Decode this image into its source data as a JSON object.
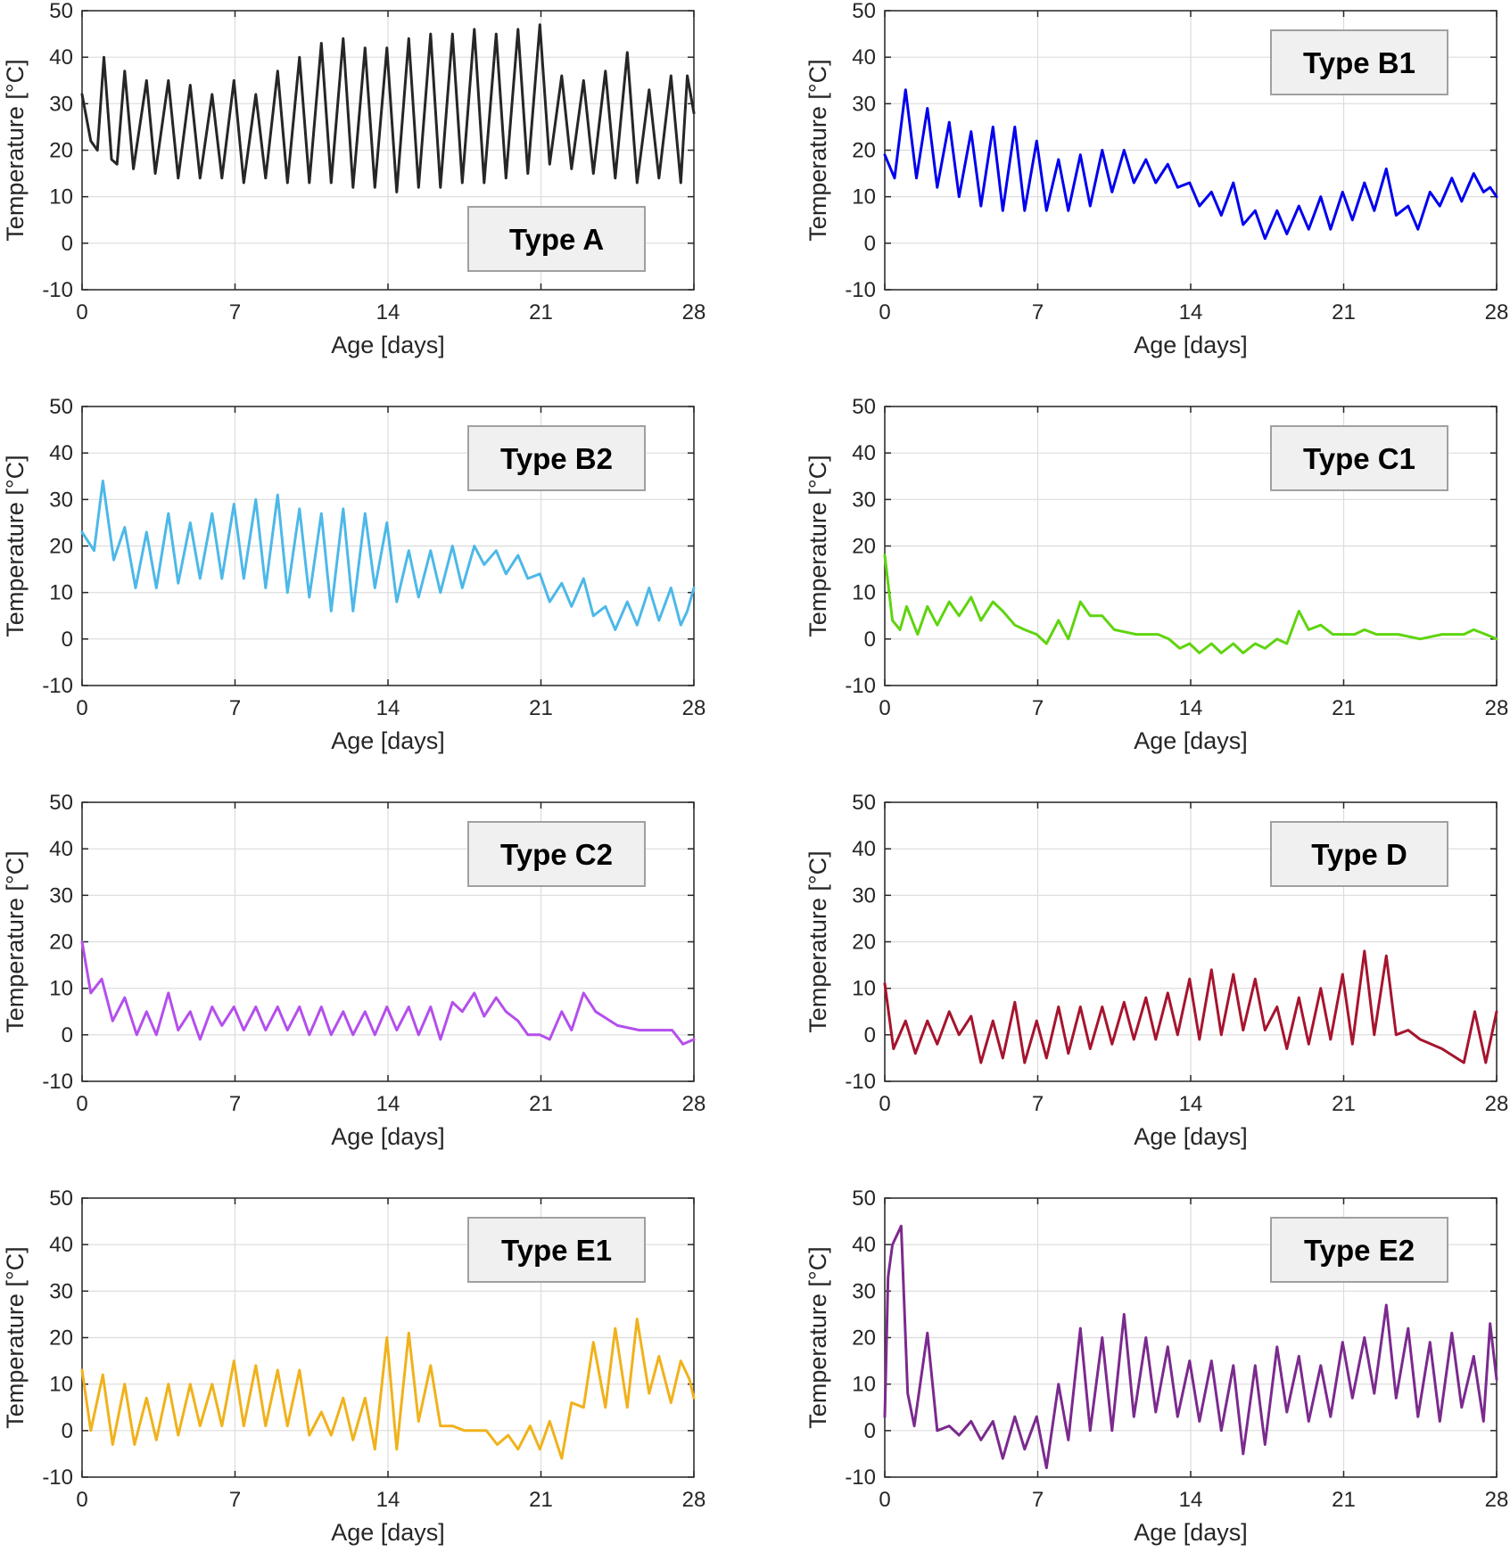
{
  "chart_data": [
    {
      "type": "line",
      "title": "",
      "legend": "Type A",
      "legend_position": "bottom-right",
      "color": "#262626",
      "xlabel": "Age [days]",
      "ylabel": "Temperature [°C]",
      "xlim": [
        0,
        28
      ],
      "ylim": [
        -10,
        50
      ],
      "xticks": [
        0,
        7,
        14,
        21,
        28
      ],
      "yticks": [
        -10,
        0,
        10,
        20,
        30,
        40,
        50
      ],
      "grid": true,
      "x": [
        0,
        0.4,
        0.7,
        1.0,
        1.35,
        1.6,
        1.95,
        2.35,
        2.95,
        3.35,
        3.95,
        4.4,
        4.95,
        5.4,
        5.95,
        6.4,
        6.95,
        7.4,
        7.95,
        8.4,
        8.95,
        9.4,
        9.95,
        10.4,
        10.95,
        11.4,
        11.95,
        12.4,
        12.95,
        13.4,
        13.95,
        14.4,
        14.95,
        15.4,
        15.95,
        16.4,
        16.95,
        17.4,
        17.95,
        18.4,
        18.95,
        19.4,
        19.95,
        20.4,
        20.95,
        21.4,
        21.95,
        22.4,
        22.95,
        23.4,
        23.95,
        24.4,
        24.95,
        25.4,
        25.95,
        26.4,
        26.95,
        27.4,
        27.7,
        28
      ],
      "y": [
        32,
        22,
        20,
        40,
        18,
        17,
        37,
        16,
        35,
        15,
        35,
        14,
        34,
        14,
        32,
        14,
        35,
        13,
        32,
        14,
        37,
        13,
        40,
        13,
        43,
        13,
        44,
        12,
        42,
        12,
        42,
        11,
        44,
        12,
        45,
        12,
        45,
        13,
        46,
        13,
        45,
        14,
        46,
        15,
        47,
        17,
        36,
        16,
        35,
        15,
        37,
        14,
        41,
        13,
        33,
        14,
        36,
        13,
        36,
        28
      ]
    },
    {
      "type": "line",
      "title": "",
      "legend": "Type B1",
      "legend_position": "top-right",
      "color": "#0000ee",
      "xlabel": "Age [days]",
      "ylabel": "Temperature [°C]",
      "xlim": [
        0,
        28
      ],
      "ylim": [
        -10,
        50
      ],
      "xticks": [
        0,
        7,
        14,
        21,
        28
      ],
      "yticks": [
        -10,
        0,
        10,
        20,
        30,
        40,
        50
      ],
      "grid": true,
      "x": [
        0,
        0.45,
        0.95,
        1.45,
        1.95,
        2.4,
        2.95,
        3.4,
        3.95,
        4.4,
        4.95,
        5.4,
        5.95,
        6.4,
        6.95,
        7.4,
        7.95,
        8.4,
        8.95,
        9.4,
        9.95,
        10.4,
        10.95,
        11.4,
        11.95,
        12.4,
        12.95,
        13.4,
        13.95,
        14.4,
        14.95,
        15.4,
        15.95,
        16.4,
        16.95,
        17.4,
        17.95,
        18.4,
        18.95,
        19.4,
        19.95,
        20.4,
        20.95,
        21.4,
        21.95,
        22.4,
        22.95,
        23.4,
        23.95,
        24.4,
        24.95,
        25.4,
        25.95,
        26.4,
        26.95,
        27.4,
        27.7,
        28
      ],
      "y": [
        19,
        14,
        33,
        14,
        29,
        12,
        26,
        10,
        24,
        8,
        25,
        7,
        25,
        7,
        22,
        7,
        18,
        7,
        19,
        8,
        20,
        11,
        20,
        13,
        18,
        13,
        17,
        12,
        13,
        8,
        11,
        6,
        13,
        4,
        7,
        1,
        7,
        2,
        8,
        3,
        10,
        3,
        11,
        5,
        13,
        7,
        16,
        6,
        8,
        3,
        11,
        8,
        14,
        9,
        15,
        11,
        12,
        10
      ]
    },
    {
      "type": "line",
      "title": "",
      "legend": "Type B2",
      "legend_position": "top-right",
      "color": "#4db8e8",
      "xlabel": "Age [days]",
      "ylabel": "Temperature [°C]",
      "xlim": [
        0,
        28
      ],
      "ylim": [
        -10,
        50
      ],
      "xticks": [
        0,
        7,
        14,
        21,
        28
      ],
      "yticks": [
        -10,
        0,
        10,
        20,
        30,
        40,
        50
      ],
      "grid": true,
      "x": [
        0,
        0.55,
        0.95,
        1.45,
        1.95,
        2.45,
        2.95,
        3.4,
        3.95,
        4.4,
        4.95,
        5.4,
        5.95,
        6.4,
        6.95,
        7.4,
        7.95,
        8.4,
        8.95,
        9.4,
        9.95,
        10.4,
        10.95,
        11.4,
        11.95,
        12.4,
        12.95,
        13.4,
        13.95,
        14.4,
        14.95,
        15.4,
        15.95,
        16.4,
        16.95,
        17.4,
        17.95,
        18.4,
        18.95,
        19.4,
        19.95,
        20.4,
        20.95,
        21.4,
        21.95,
        22.4,
        22.95,
        23.4,
        23.95,
        24.4,
        24.95,
        25.4,
        25.95,
        26.4,
        26.95,
        27.4,
        27.7,
        28
      ],
      "y": [
        23,
        19,
        34,
        17,
        24,
        11,
        23,
        11,
        27,
        12,
        25,
        13,
        27,
        13,
        29,
        13,
        30,
        11,
        31,
        10,
        28,
        9,
        27,
        6,
        28,
        6,
        27,
        11,
        25,
        8,
        19,
        9,
        19,
        10,
        20,
        11,
        20,
        16,
        19,
        14,
        18,
        13,
        14,
        8,
        12,
        7,
        13,
        5,
        7,
        2,
        8,
        3,
        11,
        4,
        11,
        3,
        6,
        11
      ]
    },
    {
      "type": "line",
      "title": "",
      "legend": "Type C1",
      "legend_position": "top-right",
      "color": "#5fd40f",
      "xlabel": "Age [days]",
      "ylabel": "Temperature [°C]",
      "xlim": [
        0,
        28
      ],
      "ylim": [
        -10,
        50
      ],
      "xticks": [
        0,
        7,
        14,
        21,
        28
      ],
      "yticks": [
        -10,
        0,
        10,
        20,
        30,
        40,
        50
      ],
      "grid": true,
      "x": [
        0,
        0.35,
        0.7,
        1.0,
        1.5,
        1.95,
        2.4,
        2.95,
        3.4,
        3.95,
        4.4,
        4.95,
        5.4,
        5.95,
        6.4,
        6.95,
        7.4,
        7.95,
        8.4,
        8.95,
        9.4,
        9.95,
        10.5,
        11.5,
        12.5,
        13.0,
        13.5,
        13.95,
        14.4,
        14.95,
        15.4,
        15.95,
        16.4,
        16.95,
        17.4,
        17.95,
        18.4,
        18.95,
        19.4,
        19.95,
        20.5,
        21.5,
        21.95,
        22.5,
        23.5,
        24.5,
        25.5,
        26.5,
        26.95,
        27.5,
        28
      ],
      "y": [
        18,
        4,
        2,
        7,
        1,
        7,
        3,
        8,
        5,
        9,
        4,
        8,
        6,
        3,
        2,
        1,
        -1,
        4,
        0,
        8,
        5,
        5,
        2,
        1,
        1,
        0,
        -2,
        -1,
        -3,
        -1,
        -3,
        -1,
        -3,
        -1,
        -2,
        0,
        -1,
        6,
        2,
        3,
        1,
        1,
        2,
        1,
        1,
        0,
        1,
        1,
        2,
        1,
        0
      ]
    },
    {
      "type": "line",
      "title": "",
      "legend": "Type C2",
      "legend_position": "top-right",
      "color": "#b44fec",
      "xlabel": "Age [days]",
      "ylabel": "Temperature [°C]",
      "xlim": [
        0,
        28
      ],
      "ylim": [
        -10,
        50
      ],
      "xticks": [
        0,
        7,
        14,
        21,
        28
      ],
      "yticks": [
        -10,
        0,
        10,
        20,
        30,
        40,
        50
      ],
      "grid": true,
      "x": [
        0,
        0.4,
        0.9,
        1.4,
        1.95,
        2.5,
        2.95,
        3.4,
        3.95,
        4.4,
        4.95,
        5.4,
        5.95,
        6.4,
        6.95,
        7.4,
        7.95,
        8.4,
        8.95,
        9.4,
        9.95,
        10.4,
        10.95,
        11.4,
        11.95,
        12.4,
        12.95,
        13.4,
        13.95,
        14.4,
        14.95,
        15.4,
        15.95,
        16.4,
        16.95,
        17.4,
        17.95,
        18.4,
        18.95,
        19.4,
        19.95,
        20.4,
        20.95,
        21.4,
        21.95,
        22.4,
        22.95,
        23.5,
        24.5,
        25.5,
        26.5,
        27.0,
        27.5,
        28
      ],
      "y": [
        20,
        9,
        12,
        3,
        8,
        0,
        5,
        0,
        9,
        1,
        5,
        -1,
        6,
        2,
        6,
        1,
        6,
        1,
        6,
        1,
        6,
        0,
        6,
        0,
        5,
        0,
        5,
        0,
        6,
        1,
        6,
        0,
        6,
        -1,
        7,
        5,
        9,
        4,
        8,
        5,
        3,
        0,
        0,
        -1,
        5,
        1,
        9,
        5,
        2,
        1,
        1,
        1,
        -2,
        -1
      ]
    },
    {
      "type": "line",
      "title": "",
      "legend": "Type D",
      "legend_position": "top-right",
      "color": "#a6142e",
      "xlabel": "Age [days]",
      "ylabel": "Temperature [°C]",
      "xlim": [
        0,
        28
      ],
      "ylim": [
        -10,
        50
      ],
      "xticks": [
        0,
        7,
        14,
        21,
        28
      ],
      "yticks": [
        -10,
        0,
        10,
        20,
        30,
        40,
        50
      ],
      "grid": true,
      "x": [
        0,
        0.4,
        0.95,
        1.4,
        1.95,
        2.4,
        2.95,
        3.4,
        3.95,
        4.4,
        4.95,
        5.4,
        5.95,
        6.4,
        6.95,
        7.4,
        7.95,
        8.4,
        8.95,
        9.4,
        9.95,
        10.4,
        10.95,
        11.4,
        11.95,
        12.4,
        12.95,
        13.4,
        13.95,
        14.4,
        14.95,
        15.4,
        15.95,
        16.4,
        16.95,
        17.4,
        17.95,
        18.4,
        18.95,
        19.4,
        19.95,
        20.4,
        20.95,
        21.4,
        21.95,
        22.4,
        22.95,
        23.4,
        23.95,
        24.5,
        25.5,
        26.5,
        27.0,
        27.5,
        28
      ],
      "y": [
        11,
        -3,
        3,
        -4,
        3,
        -2,
        5,
        0,
        4,
        -6,
        3,
        -5,
        7,
        -6,
        3,
        -5,
        6,
        -4,
        6,
        -3,
        6,
        -2,
        7,
        -1,
        8,
        -1,
        9,
        0,
        12,
        -1,
        14,
        0,
        13,
        1,
        12,
        1,
        6,
        -3,
        8,
        -2,
        10,
        -1,
        13,
        -2,
        18,
        0,
        17,
        0,
        1,
        -1,
        -3,
        -6,
        5,
        -6,
        5
      ]
    },
    {
      "type": "line",
      "title": "",
      "legend": "Type E1",
      "legend_position": "top-right",
      "color": "#f0b21c",
      "xlabel": "Age [days]",
      "ylabel": "Temperature [°C]",
      "xlim": [
        0,
        28
      ],
      "ylim": [
        -10,
        50
      ],
      "xticks": [
        0,
        7,
        14,
        21,
        28
      ],
      "yticks": [
        -10,
        0,
        10,
        20,
        30,
        40,
        50
      ],
      "grid": true,
      "x": [
        0,
        0.4,
        0.95,
        1.4,
        1.95,
        2.4,
        2.95,
        3.4,
        3.95,
        4.4,
        4.95,
        5.4,
        5.95,
        6.4,
        6.95,
        7.4,
        7.95,
        8.4,
        8.95,
        9.4,
        9.95,
        10.4,
        10.95,
        11.4,
        11.95,
        12.4,
        12.95,
        13.4,
        13.95,
        14.4,
        14.95,
        15.4,
        15.95,
        16.4,
        16.95,
        17.5,
        18.5,
        19.0,
        19.5,
        19.95,
        20.5,
        20.95,
        21.4,
        21.95,
        22.4,
        22.95,
        23.4,
        23.95,
        24.4,
        24.95,
        25.4,
        25.95,
        26.4,
        26.95,
        27.4,
        27.8,
        28
      ],
      "y": [
        13,
        0,
        12,
        -3,
        10,
        -3,
        7,
        -2,
        10,
        -1,
        10,
        1,
        10,
        1,
        15,
        1,
        14,
        1,
        13,
        1,
        13,
        -1,
        4,
        -1,
        7,
        -2,
        7,
        -4,
        20,
        -4,
        21,
        2,
        14,
        1,
        1,
        0,
        0,
        -3,
        -1,
        -4,
        1,
        -4,
        2,
        -6,
        6,
        5,
        19,
        5,
        22,
        5,
        24,
        8,
        16,
        6,
        15,
        11,
        7
      ]
    },
    {
      "type": "line",
      "title": "",
      "legend": "Type E2",
      "legend_position": "top-right",
      "color": "#7b2a8e",
      "xlabel": "Age [days]",
      "ylabel": "Temperature [°C]",
      "xlim": [
        0,
        28
      ],
      "ylim": [
        -10,
        50
      ],
      "xticks": [
        0,
        7,
        14,
        21,
        28
      ],
      "yticks": [
        -10,
        0,
        10,
        20,
        30,
        40,
        50
      ],
      "grid": true,
      "x": [
        0,
        0.15,
        0.35,
        0.75,
        1.05,
        1.35,
        1.95,
        2.4,
        2.95,
        3.4,
        3.95,
        4.4,
        4.95,
        5.4,
        5.95,
        6.4,
        6.95,
        7.4,
        7.95,
        8.4,
        8.95,
        9.4,
        9.95,
        10.4,
        10.95,
        11.4,
        11.95,
        12.4,
        12.95,
        13.4,
        13.95,
        14.4,
        14.95,
        15.4,
        15.95,
        16.4,
        16.95,
        17.4,
        17.95,
        18.4,
        18.95,
        19.4,
        19.95,
        20.4,
        20.95,
        21.4,
        21.95,
        22.4,
        22.95,
        23.4,
        23.95,
        24.4,
        24.95,
        25.4,
        25.95,
        26.4,
        26.95,
        27.4,
        27.7,
        28
      ],
      "y": [
        3,
        33,
        40,
        44,
        8,
        1,
        21,
        0,
        1,
        -1,
        2,
        -2,
        2,
        -6,
        3,
        -4,
        3,
        -8,
        10,
        -2,
        22,
        0,
        20,
        0,
        25,
        3,
        20,
        4,
        18,
        3,
        15,
        2,
        15,
        0,
        14,
        -5,
        14,
        -3,
        18,
        4,
        16,
        2,
        14,
        3,
        19,
        7,
        20,
        8,
        27,
        7,
        22,
        3,
        19,
        2,
        21,
        5,
        16,
        2,
        23,
        11
      ]
    }
  ]
}
